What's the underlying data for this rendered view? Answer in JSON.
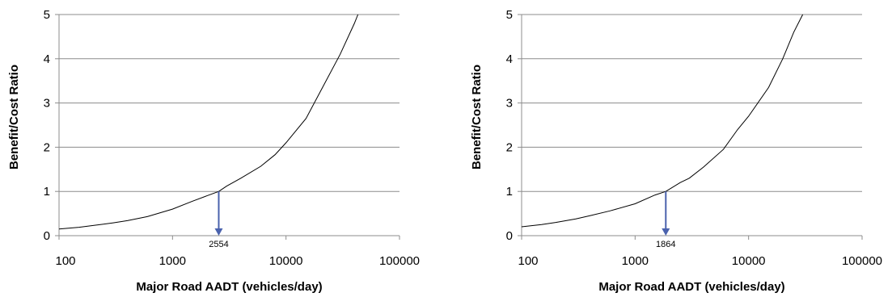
{
  "chart_data": [
    {
      "type": "line",
      "xscale": "log",
      "xlim": [
        100,
        100000
      ],
      "ylim": [
        0,
        5
      ],
      "x_ticks": [
        "100",
        "1000",
        "10000",
        "100000"
      ],
      "y_ticks": [
        "0",
        "1",
        "2",
        "3",
        "4",
        "5"
      ],
      "xlabel": "Major Road AADT (vehicles/day)",
      "ylabel": "Benefit/Cost Ratio",
      "grid": "horizontal",
      "series": [
        {
          "x": [
            100,
            150,
            200,
            300,
            400,
            600,
            1000,
            1500,
            2000,
            2554,
            3000,
            4000,
            6000,
            8000,
            10000,
            15000,
            20000,
            30000,
            40000,
            43000
          ],
          "y": [
            0.15,
            0.19,
            0.23,
            0.29,
            0.34,
            0.43,
            0.6,
            0.78,
            0.9,
            1.0,
            1.12,
            1.3,
            1.57,
            1.83,
            2.1,
            2.65,
            3.25,
            4.1,
            4.8,
            5.0
          ],
          "color": "#000000"
        }
      ],
      "marker": {
        "x": 2554,
        "y_from": 1,
        "y_to": 0,
        "label": "2554",
        "color": "#4a62ad"
      }
    },
    {
      "type": "line",
      "xscale": "log",
      "xlim": [
        100,
        100000
      ],
      "ylim": [
        0,
        5
      ],
      "x_ticks": [
        "100",
        "1000",
        "10000",
        "100000"
      ],
      "y_ticks": [
        "0",
        "1",
        "2",
        "3",
        "4",
        "5"
      ],
      "xlabel": "Major Road AADT (vehicles/day)",
      "ylabel": "Benefit/Cost Ratio",
      "grid": "horizontal",
      "series": [
        {
          "x": [
            100,
            150,
            200,
            300,
            400,
            600,
            1000,
            1500,
            1864,
            2500,
            3000,
            4000,
            6000,
            8000,
            10000,
            15000,
            20000,
            25000,
            30000
          ],
          "y": [
            0.2,
            0.25,
            0.3,
            0.38,
            0.45,
            0.56,
            0.72,
            0.92,
            1.0,
            1.2,
            1.3,
            1.55,
            1.95,
            2.4,
            2.7,
            3.35,
            4.0,
            4.6,
            5.0
          ],
          "color": "#000000"
        }
      ],
      "marker": {
        "x": 1864,
        "y_from": 1,
        "y_to": 0,
        "label": "1864",
        "color": "#4a62ad"
      }
    }
  ]
}
